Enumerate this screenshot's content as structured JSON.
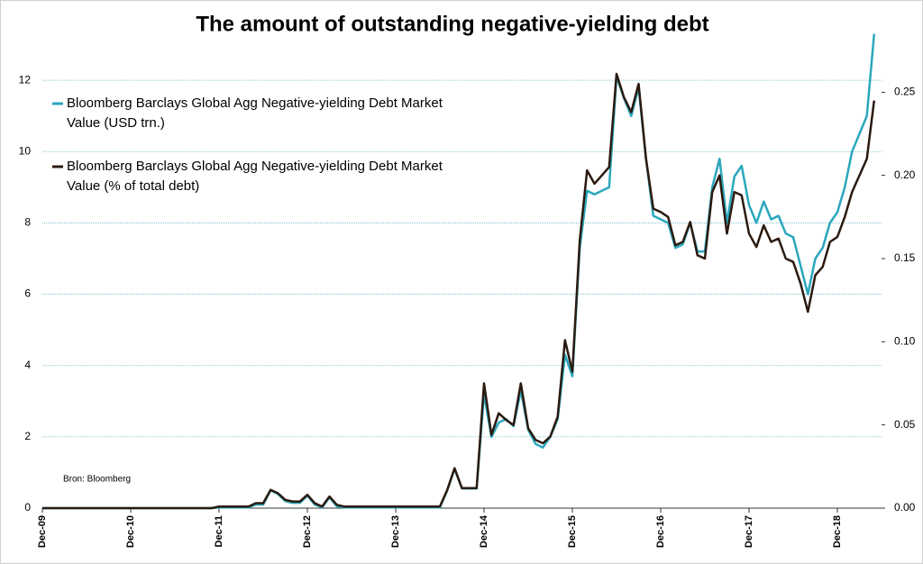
{
  "chart_data": {
    "type": "line",
    "title": "The amount of outstanding negative-yielding debt",
    "annotation": "Bron: Bloomberg",
    "legend": "upper left",
    "grid": true,
    "x": [
      "2009-12",
      "2010-01",
      "2010-02",
      "2010-03",
      "2010-04",
      "2010-05",
      "2010-06",
      "2010-07",
      "2010-08",
      "2010-09",
      "2010-10",
      "2010-11",
      "2010-12",
      "2011-01",
      "2011-02",
      "2011-03",
      "2011-04",
      "2011-05",
      "2011-06",
      "2011-07",
      "2011-08",
      "2011-09",
      "2011-10",
      "2011-11",
      "2011-12",
      "2012-01",
      "2012-02",
      "2012-03",
      "2012-04",
      "2012-05",
      "2012-06",
      "2012-07",
      "2012-08",
      "2012-09",
      "2012-10",
      "2012-11",
      "2012-12",
      "2013-01",
      "2013-02",
      "2013-03",
      "2013-04",
      "2013-05",
      "2013-06",
      "2013-07",
      "2013-08",
      "2013-09",
      "2013-10",
      "2013-11",
      "2013-12",
      "2014-01",
      "2014-02",
      "2014-03",
      "2014-04",
      "2014-05",
      "2014-06",
      "2014-07",
      "2014-08",
      "2014-09",
      "2014-10",
      "2014-11",
      "2014-12",
      "2015-01",
      "2015-02",
      "2015-03",
      "2015-04",
      "2015-05",
      "2015-06",
      "2015-07",
      "2015-08",
      "2015-09",
      "2015-10",
      "2015-11",
      "2015-12",
      "2016-01",
      "2016-02",
      "2016-03",
      "2016-04",
      "2016-05",
      "2016-06",
      "2016-07",
      "2016-08",
      "2016-09",
      "2016-10",
      "2016-11",
      "2016-12",
      "2017-01",
      "2017-02",
      "2017-03",
      "2017-04",
      "2017-05",
      "2017-06",
      "2017-07",
      "2017-08",
      "2017-09",
      "2017-10",
      "2017-11",
      "2017-12",
      "2018-01",
      "2018-02",
      "2018-03",
      "2018-04",
      "2018-05",
      "2018-06",
      "2018-07",
      "2018-08",
      "2018-09",
      "2018-10",
      "2018-11",
      "2018-12",
      "2019-01",
      "2019-02",
      "2019-03",
      "2019-04",
      "2019-05"
    ],
    "xlim": [
      "2009-12",
      "2019-06"
    ],
    "xticks": [
      {
        "value": "2009-12",
        "label": "Dec-09"
      },
      {
        "value": "2010-12",
        "label": "Dec-10"
      },
      {
        "value": "2011-12",
        "label": "Dec-11"
      },
      {
        "value": "2012-12",
        "label": "Dec-12"
      },
      {
        "value": "2013-12",
        "label": "Dec-13"
      },
      {
        "value": "2014-12",
        "label": "Dec-14"
      },
      {
        "value": "2015-12",
        "label": "Dec-15"
      },
      {
        "value": "2016-12",
        "label": "Dec-16"
      },
      {
        "value": "2017-12",
        "label": "Dec-17"
      },
      {
        "value": "2018-12",
        "label": "Dec-18"
      }
    ],
    "ylim": [
      0,
      14
    ],
    "yticks": [
      0,
      2,
      4,
      6,
      8,
      10,
      12
    ],
    "y2lim": [
      0,
      0.3
    ],
    "y2ticks": [
      {
        "value": 0,
        "label": "0.00"
      },
      {
        "value": 0.05,
        "label": "0.05"
      },
      {
        "value": 0.1,
        "label": "0.10"
      },
      {
        "value": 0.15,
        "label": "0.15"
      },
      {
        "value": 0.2,
        "label": "0.20"
      },
      {
        "value": 0.25,
        "label": "0.25"
      }
    ],
    "series": [
      {
        "name": "Bloomberg Barclays Global Agg Negative-yielding Debt Market Value (USD trn.)",
        "color": "#2aa7bd",
        "values": [
          0,
          0,
          0,
          0,
          0,
          0,
          0,
          0,
          0,
          0,
          0,
          0,
          0,
          0,
          0,
          0,
          0,
          0,
          0,
          0,
          0,
          0,
          0,
          0,
          0.02,
          0.02,
          0.02,
          0.02,
          0.02,
          0.1,
          0.1,
          0.5,
          0.4,
          0.2,
          0.15,
          0.15,
          0.35,
          0.1,
          0.02,
          0.3,
          0.05,
          0.02,
          0.02,
          0.02,
          0.02,
          0.02,
          0.02,
          0.02,
          0.02,
          0.02,
          0.02,
          0.02,
          0.02,
          0.02,
          0.02,
          0.5,
          1.1,
          0.55,
          0.55,
          0.55,
          3.2,
          2.0,
          2.4,
          2.5,
          2.3,
          3.3,
          2.2,
          1.8,
          1.7,
          2.0,
          2.5,
          4.3,
          3.7,
          7.3,
          8.9,
          8.8,
          8.9,
          9.0,
          12.1,
          11.5,
          11.0,
          11.8,
          9.8,
          8.2,
          8.1,
          8.0,
          7.3,
          7.4,
          8.0,
          7.2,
          7.2,
          9.0,
          9.8,
          8.0,
          9.3,
          9.6,
          8.5,
          8.0,
          8.6,
          8.1,
          8.2,
          7.7,
          7.6,
          6.8,
          6.0,
          7.0,
          7.3,
          8.0,
          8.3,
          9.0,
          10.0,
          10.5,
          11.0,
          13.3
        ]
      },
      {
        "name": "Bloomberg Barclays Global Agg Negative-yielding Debt Market Value (% of total debt)",
        "color": "#2b1a10",
        "axis": "y2",
        "values": [
          0,
          0,
          0,
          0,
          0,
          0,
          0,
          0,
          0,
          0,
          0,
          0,
          0,
          0,
          0,
          0,
          0,
          0,
          0,
          0,
          0,
          0,
          0,
          0,
          0.001,
          0.001,
          0.001,
          0.001,
          0.001,
          0.003,
          0.003,
          0.011,
          0.009,
          0.005,
          0.004,
          0.004,
          0.008,
          0.003,
          0.001,
          0.007,
          0.002,
          0.001,
          0.001,
          0.001,
          0.001,
          0.001,
          0.001,
          0.001,
          0.001,
          0.001,
          0.001,
          0.001,
          0.001,
          0.001,
          0.001,
          0.011,
          0.024,
          0.012,
          0.012,
          0.012,
          0.075,
          0.044,
          0.057,
          0.053,
          0.05,
          0.075,
          0.048,
          0.041,
          0.039,
          0.043,
          0.055,
          0.101,
          0.082,
          0.161,
          0.203,
          0.195,
          0.2,
          0.205,
          0.261,
          0.247,
          0.238,
          0.255,
          0.21,
          0.18,
          0.178,
          0.175,
          0.158,
          0.16,
          0.172,
          0.152,
          0.15,
          0.19,
          0.2,
          0.165,
          0.19,
          0.188,
          0.165,
          0.157,
          0.17,
          0.16,
          0.162,
          0.15,
          0.148,
          0.135,
          0.118,
          0.14,
          0.145,
          0.16,
          0.163,
          0.175,
          0.19,
          0.2,
          0.21,
          0.245
        ]
      }
    ]
  }
}
